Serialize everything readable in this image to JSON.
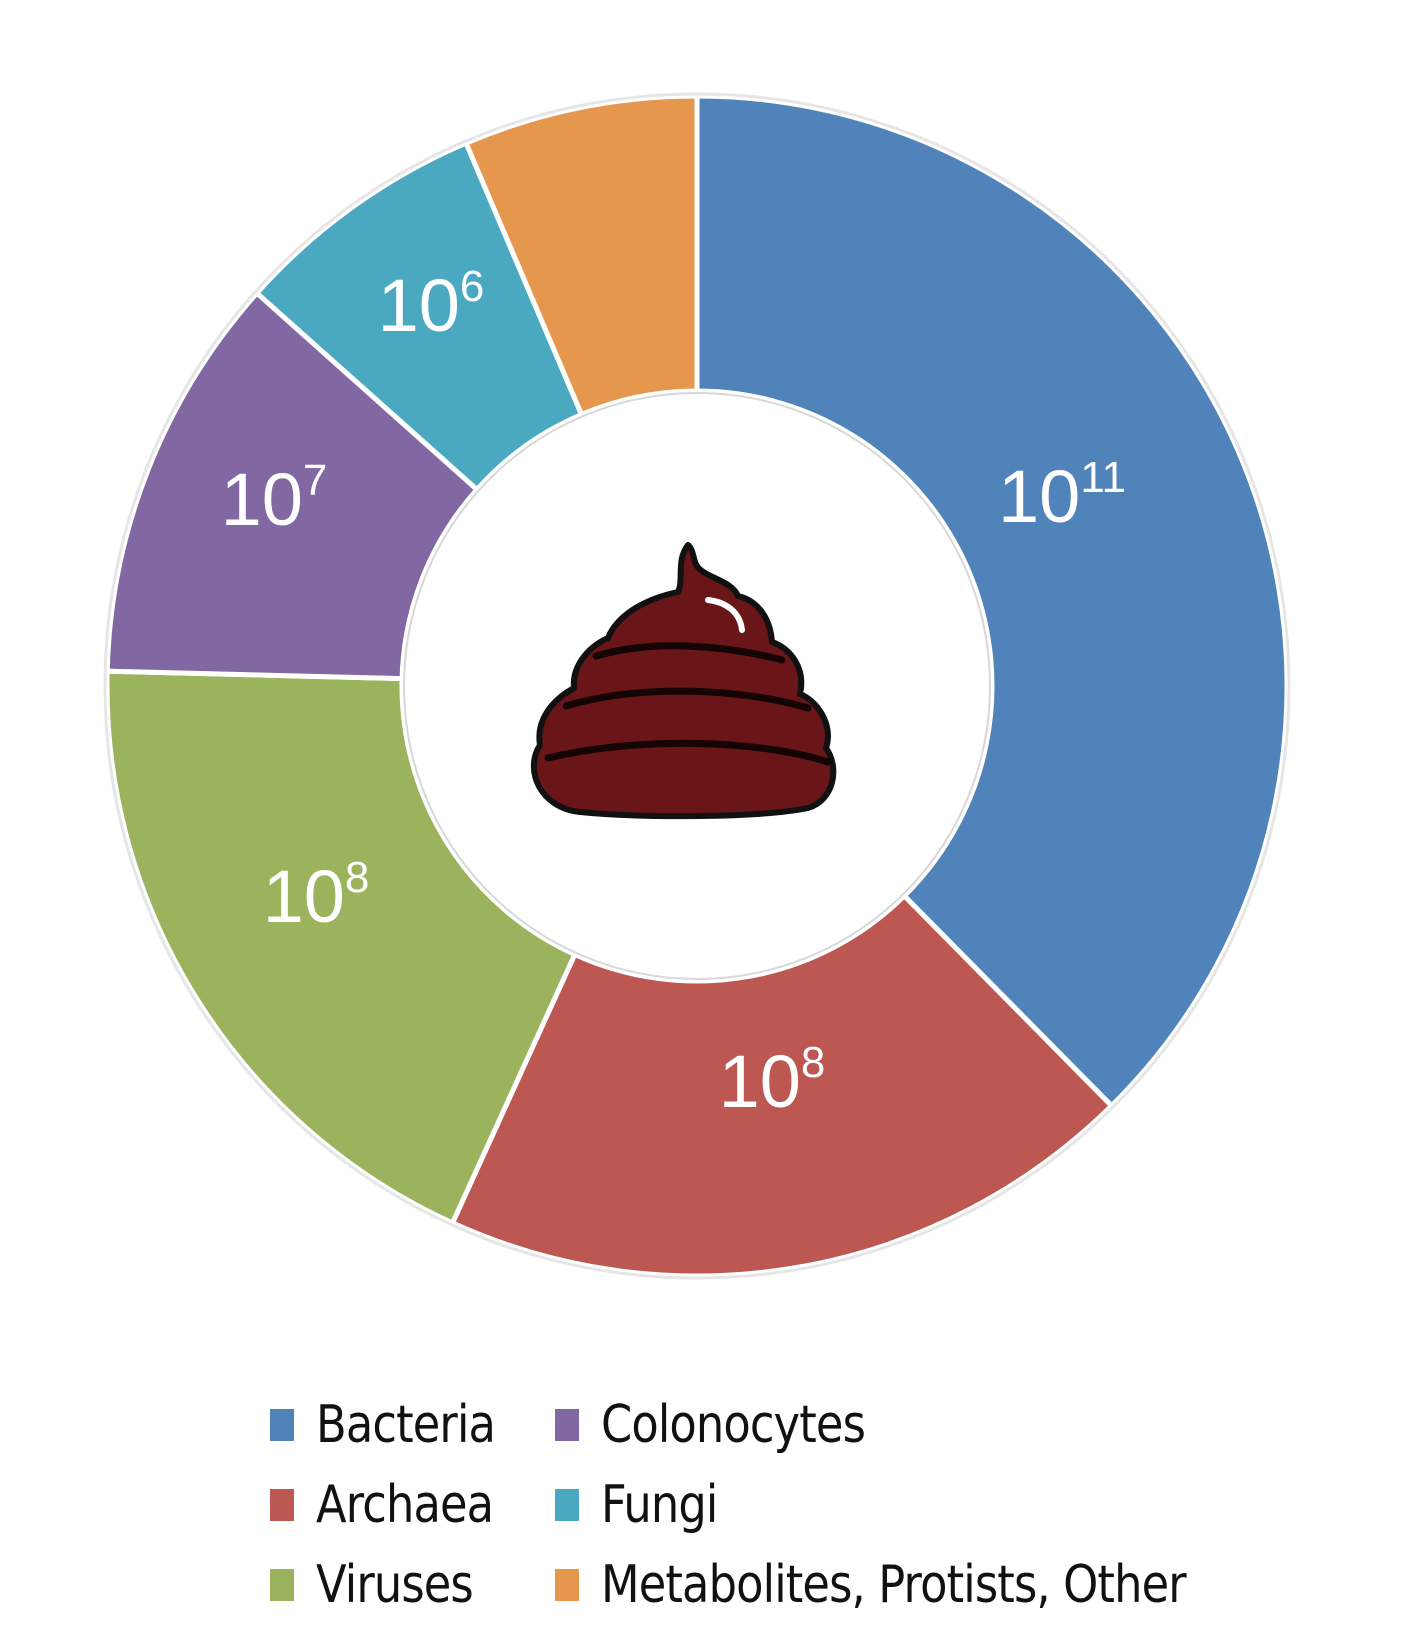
{
  "chart_data": {
    "type": "pie",
    "donut": true,
    "title": "",
    "center_icon": "poop-icon",
    "slices": [
      {
        "name": "Bacteria",
        "value": 37.6,
        "color": "#5083b9",
        "label_base": "10",
        "label_exp": "11"
      },
      {
        "name": "Archaea",
        "value": 19.2,
        "color": "#bc5752",
        "label_base": "10",
        "label_exp": "8"
      },
      {
        "name": "Viruses",
        "value": 18.6,
        "color": "#9cb35e",
        "label_base": "10",
        "label_exp": "8"
      },
      {
        "name": "Colonocytes",
        "value": 11.2,
        "color": "#8268a3",
        "label_base": "10",
        "label_exp": "7"
      },
      {
        "name": "Fungi",
        "value": 7.0,
        "color": "#4aa9c0",
        "label_base": "10",
        "label_exp": "6"
      },
      {
        "name": "Metabolites, Protists, Other",
        "value": 6.4,
        "color": "#e5974e",
        "label_base": "",
        "label_exp": ""
      }
    ],
    "legend": {
      "placement": "bottom",
      "items": [
        {
          "label": "Bacteria",
          "color": "#5083b9"
        },
        {
          "label": "Colonocytes",
          "color": "#8268a3"
        },
        {
          "label": "Archaea",
          "color": "#bc5752"
        },
        {
          "label": "Fungi",
          "color": "#4aa9c0"
        },
        {
          "label": "Viruses",
          "color": "#9cb35e"
        },
        {
          "label": "Metabolites, Protists, Other",
          "color": "#e5974e"
        }
      ]
    }
  }
}
